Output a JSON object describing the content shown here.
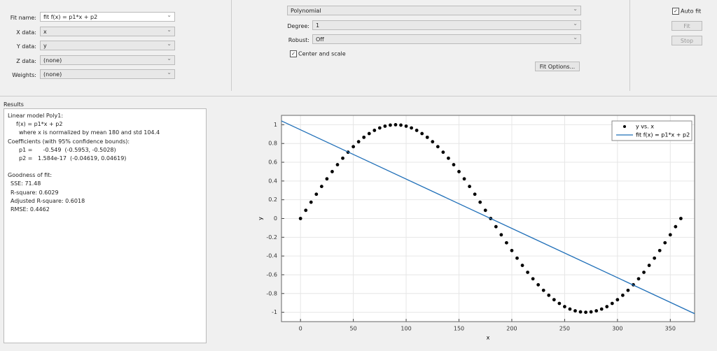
{
  "fit_setup": {
    "fit_name_label": "Fit name:",
    "fit_name": "fit f(x) = p1*x + p2",
    "x_data_label": "X data:",
    "x_data": "x",
    "y_data_label": "Y data:",
    "y_data": "y",
    "z_data_label": "Z data:",
    "z_data": "(none)",
    "weights_label": "Weights:",
    "weights": "(none)",
    "fit_type": "Polynomial",
    "degree_label": "Degree:",
    "degree": "1",
    "robust_label": "Robust:",
    "robust": "Off",
    "center_scale": "Center and scale",
    "fit_options": "Fit Options...",
    "auto_fit": "Auto fit",
    "fit_button": "Fit",
    "stop_button": "Stop"
  },
  "results": {
    "title": "Results",
    "lines": [
      "Linear model Poly1:",
      "f(x) = p1*x + p2",
      "where x is normalized by mean 180 and std 104.4",
      "Coefficients (with 95% confidence bounds):",
      "p1 =      -0.549  (-0.5953, -0.5028)",
      "p2 =   1.584e-17  (-0.04619, 0.04619)",
      "Goodness of fit:",
      "SSE: 71.48",
      "R-square: 0.6029",
      "Adjusted R-square: 0.6018",
      "RMSE: 0.4462"
    ]
  },
  "chart_data": {
    "type": "scatter",
    "xlabel": "x",
    "ylabel": "y",
    "xlim": [
      -18,
      373
    ],
    "ylim": [
      -1.1,
      1.1
    ],
    "xticks": [
      0,
      50,
      100,
      150,
      200,
      250,
      300,
      350
    ],
    "yticks": [
      -1,
      -0.8,
      -0.6,
      -0.4,
      -0.2,
      0,
      0.2,
      0.4,
      0.6,
      0.8,
      1
    ],
    "grid": true,
    "legend": "upper right",
    "series": [
      {
        "name": "y vs. x",
        "type": "scatter",
        "color": "#000000",
        "x": [
          0,
          5,
          10,
          15,
          20,
          25,
          30,
          35,
          40,
          45,
          50,
          55,
          60,
          65,
          70,
          75,
          80,
          85,
          90,
          95,
          100,
          105,
          110,
          115,
          120,
          125,
          130,
          135,
          140,
          145,
          150,
          155,
          160,
          165,
          170,
          175,
          180,
          185,
          190,
          195,
          200,
          205,
          210,
          215,
          220,
          225,
          230,
          235,
          240,
          245,
          250,
          255,
          260,
          265,
          270,
          275,
          280,
          285,
          290,
          295,
          300,
          305,
          310,
          315,
          320,
          325,
          330,
          335,
          340,
          345,
          350,
          355,
          360
        ],
        "values": [
          0,
          0.087,
          0.174,
          0.259,
          0.342,
          0.423,
          0.5,
          0.574,
          0.643,
          0.707,
          0.766,
          0.819,
          0.866,
          0.906,
          0.94,
          0.966,
          0.985,
          0.996,
          1,
          0.996,
          0.985,
          0.966,
          0.94,
          0.906,
          0.866,
          0.819,
          0.766,
          0.707,
          0.643,
          0.574,
          0.5,
          0.423,
          0.342,
          0.259,
          0.174,
          0.087,
          0,
          -0.087,
          -0.174,
          -0.259,
          -0.342,
          -0.423,
          -0.5,
          -0.574,
          -0.643,
          -0.707,
          -0.766,
          -0.819,
          -0.866,
          -0.906,
          -0.94,
          -0.966,
          -0.985,
          -0.996,
          -1,
          -0.996,
          -0.985,
          -0.966,
          -0.94,
          -0.906,
          -0.866,
          -0.819,
          -0.766,
          -0.707,
          -0.643,
          -0.574,
          -0.5,
          -0.423,
          -0.342,
          -0.259,
          -0.174,
          -0.087,
          0
        ]
      },
      {
        "name": "fit f(x) = p1*x + p2",
        "type": "line",
        "color": "#1f6fb8",
        "x": [
          -18,
          373
        ],
        "values": [
          1.041,
          -1.015
        ]
      }
    ]
  }
}
